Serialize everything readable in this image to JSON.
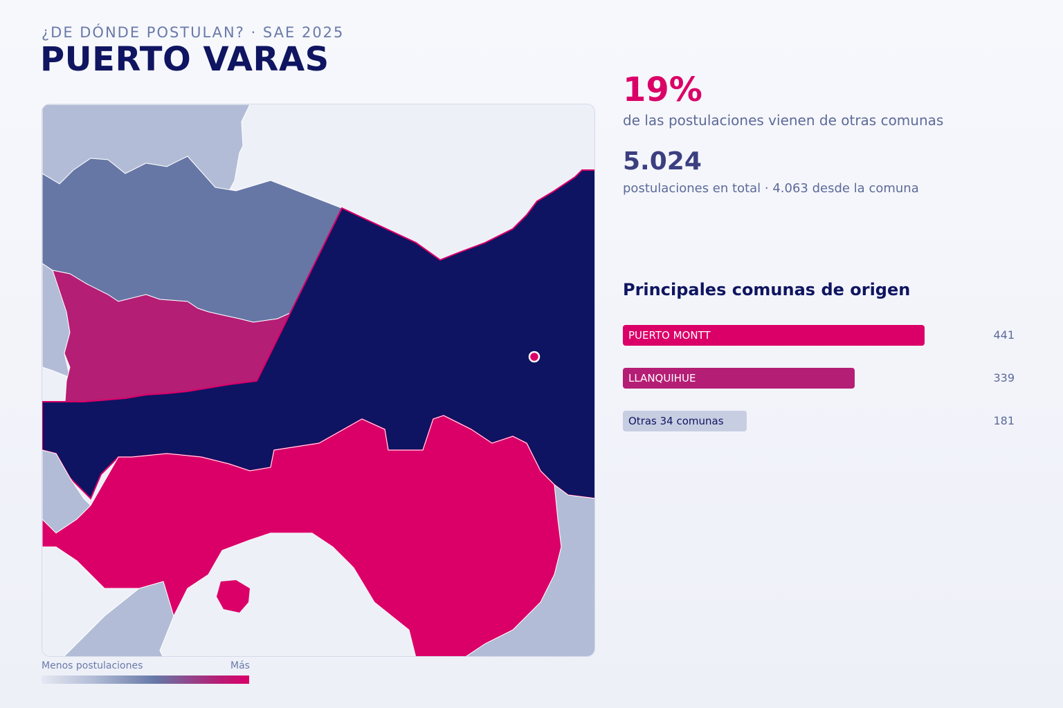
{
  "header": {
    "eyebrow": "¿DE DÓNDE POSTULAN? · SAE 2025",
    "title": "PUERTO VARAS"
  },
  "stats": {
    "percent": "19%",
    "percent_label": "de las postulaciones vienen de otras comunas",
    "total": "5.024",
    "total_label": "postulaciones en total · 4.063 desde la comuna"
  },
  "ranking": {
    "title": "Principales comunas de origen",
    "max_value": 441,
    "items": [
      {
        "label": "PUERTO MONTT",
        "value": 441,
        "display": "441",
        "color": "#db0068",
        "text_color": "#ffffff"
      },
      {
        "label": "LLANQUIHUE",
        "value": 339,
        "display": "339",
        "color": "#b51e75",
        "text_color": "#ffffff"
      },
      {
        "label": "Otras 34 comunas",
        "value": 181,
        "display": "181",
        "color": "#c8cee2",
        "text_color": "#0f1560"
      }
    ]
  },
  "legend": {
    "low_label": "Menos postulaciones",
    "high_label": "Más"
  },
  "colors": {
    "target_commune": "#0e1462",
    "high": "#db0068",
    "mid_high": "#b51e75",
    "mid": "#6677a6",
    "low": "#b2bcd6",
    "none": "#eef0f8"
  }
}
